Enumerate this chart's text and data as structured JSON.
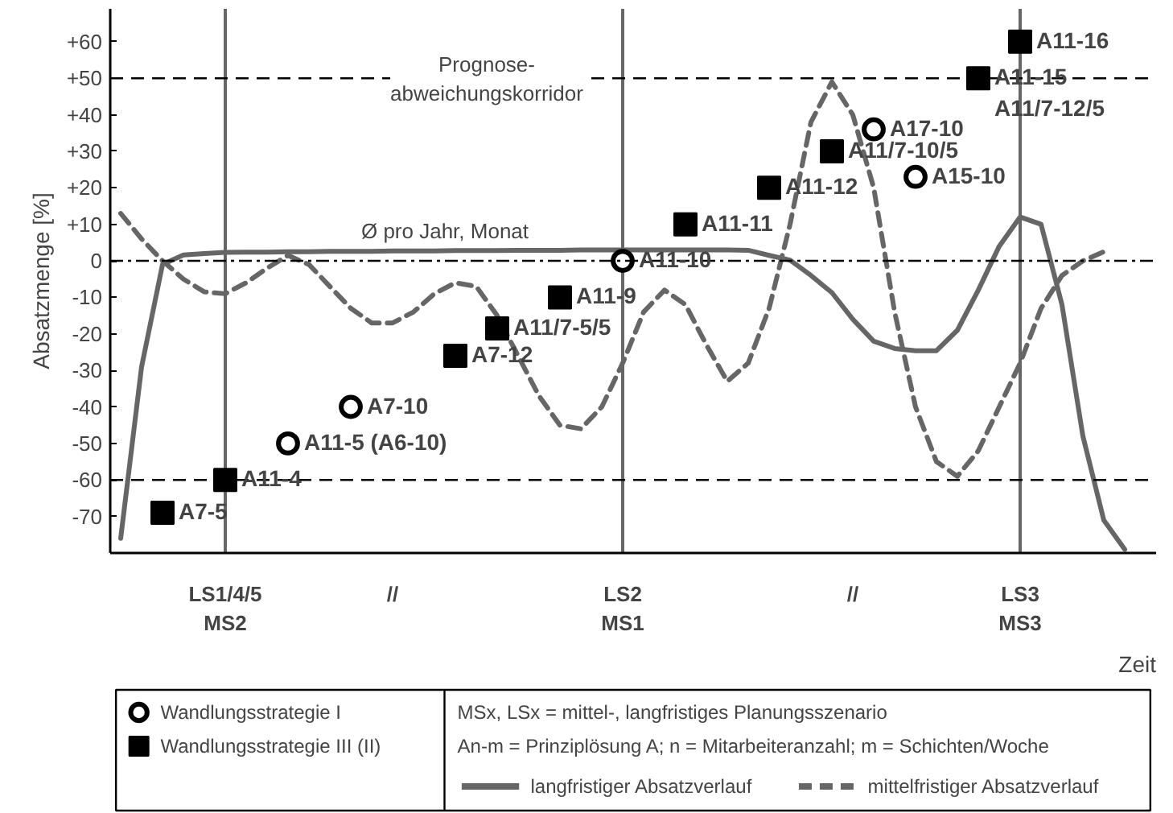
{
  "chart_data": {
    "type": "scatter",
    "ylabel": "Absatzmenge [%]",
    "xlabel": "Zeit",
    "categories": [
      null,
      null,
      null,
      null,
      null,
      "LS1/4/5\nMS2",
      null,
      null,
      null,
      null,
      null,
      null,
      null,
      "//",
      null,
      null,
      null,
      null,
      null,
      null,
      null,
      null,
      null,
      null,
      "LS2\nMS1",
      null,
      null,
      null,
      null,
      null,
      null,
      null,
      null,
      null,
      null,
      "//",
      null,
      null,
      null,
      null,
      null,
      null,
      null,
      "LS3\nMS3",
      null,
      null,
      null,
      null,
      null,
      null
    ],
    "ylim": [
      -80,
      69
    ],
    "yticks": [
      {
        "value": -70,
        "label": "-70"
      },
      {
        "value": -60,
        "label": "-60"
      },
      {
        "value": -50,
        "label": "-50"
      },
      {
        "value": -40,
        "label": "-40"
      },
      {
        "value": -30,
        "label": "-30"
      },
      {
        "value": -20,
        "label": "-20"
      },
      {
        "value": -10,
        "label": "-10"
      },
      {
        "value": 0,
        "label": "0"
      },
      {
        "value": 10,
        "label": "+10"
      },
      {
        "value": 20,
        "label": "+20"
      },
      {
        "value": 30,
        "label": "+30"
      },
      {
        "value": 40,
        "label": "+40"
      },
      {
        "value": 50,
        "label": "+50"
      },
      {
        "value": 60,
        "label": "+60"
      }
    ],
    "legend": "bottom",
    "series": [
      {
        "name": "Wandlungsstrategie I",
        "marker": "circle",
        "color": "#000000",
        "values": [
          null,
          null,
          null,
          null,
          null,
          null,
          null,
          null,
          -50,
          null,
          null,
          -40,
          null,
          null,
          null,
          null,
          null,
          null,
          null,
          null,
          null,
          null,
          null,
          null,
          0,
          null,
          null,
          null,
          null,
          null,
          null,
          null,
          null,
          null,
          null,
          null,
          36,
          null,
          23,
          null,
          null,
          null,
          null,
          null,
          null,
          null,
          null,
          null,
          null,
          null
        ],
        "value_labels": [
          null,
          null,
          null,
          null,
          null,
          null,
          null,
          null,
          "A11-5 (A6-10)",
          null,
          null,
          "A7-10",
          null,
          null,
          null,
          null,
          null,
          null,
          null,
          null,
          null,
          null,
          null,
          null,
          "A11-10",
          null,
          null,
          null,
          null,
          null,
          null,
          null,
          null,
          null,
          null,
          null,
          "A17-10",
          null,
          "A15-10",
          null,
          null,
          null,
          null,
          null,
          null,
          null,
          null,
          null,
          null,
          null
        ]
      },
      {
        "name": "Wandlungsstrategie III (II)",
        "marker": "square",
        "color": "#000000",
        "values": [
          null,
          null,
          -69,
          null,
          null,
          -60,
          null,
          null,
          null,
          null,
          null,
          null,
          null,
          null,
          null,
          null,
          -26,
          null,
          -18.5,
          null,
          null,
          -10,
          null,
          null,
          null,
          null,
          null,
          10,
          null,
          null,
          null,
          20,
          null,
          null,
          30,
          null,
          null,
          null,
          null,
          null,
          null,
          50,
          null,
          60,
          null,
          null,
          null,
          null,
          null,
          null
        ],
        "value_labels": [
          null,
          null,
          "A7-5",
          null,
          null,
          "A11-4",
          null,
          null,
          null,
          null,
          null,
          null,
          null,
          null,
          null,
          null,
          "A7-12",
          null,
          "A11/7-5/5",
          null,
          null,
          "A11-9",
          null,
          null,
          null,
          null,
          null,
          "A11-11",
          null,
          null,
          null,
          "A11-12",
          null,
          null,
          "A11/7-10/5",
          null,
          null,
          null,
          null,
          null,
          null,
          "A11-15\nA11/7-12/5",
          null,
          "A11-16",
          null,
          null,
          null,
          null,
          null,
          null
        ]
      },
      {
        "name": "langfristiger Absatzverlauf",
        "type": "line",
        "line_style": "solid",
        "color": "#666666",
        "values": [
          -76,
          -29,
          -1,
          1.6,
          2,
          2.3,
          2.4,
          2.4,
          2.5,
          2.5,
          2.6,
          2.6,
          2.6,
          2.7,
          2.7,
          2.7,
          2.8,
          2.8,
          2.8,
          2.9,
          2.9,
          2.9,
          3,
          3,
          3,
          3,
          3,
          3,
          3,
          3,
          2.9,
          1.5,
          0.2,
          -4,
          -8.7,
          -16,
          -22,
          -24,
          -24.6,
          -24.6,
          -19,
          -8,
          4,
          12,
          10,
          -12,
          -48,
          -71,
          -79,
          null
        ]
      },
      {
        "name": "mittelfristiger Absatzverlauf",
        "type": "line",
        "line_style": "dashed",
        "color": "#666666",
        "values": [
          13,
          6,
          0,
          -5,
          -8.5,
          -9,
          -6,
          -2,
          1.5,
          -1,
          -7,
          -13,
          -17,
          -17,
          -14,
          -9,
          -6,
          -7,
          -15,
          -26,
          -37,
          -45,
          -46,
          -40,
          -28,
          -14,
          -8,
          -12,
          -23,
          -33,
          -28,
          -13,
          10,
          38,
          49,
          40,
          20,
          -14,
          -40,
          -55,
          -59,
          -52,
          -40,
          -28,
          -13,
          -4,
          0,
          2.5,
          null,
          null
        ]
      }
    ],
    "ref_lines": [
      {
        "axis": "y",
        "value": 50,
        "label": "Prognose-\nabweichungskorridor",
        "line_style": "dashed",
        "color": "#000000"
      },
      {
        "axis": "y",
        "value": -60,
        "line_style": "dashed",
        "color": "#000000"
      },
      {
        "axis": "y",
        "value": 0,
        "line_style": "dashdot",
        "color": "#000000"
      },
      {
        "axis": "x",
        "value": "LS1/4/5\nMS2",
        "color": "#666666"
      },
      {
        "axis": "x",
        "value": "LS2\nMS1",
        "color": "#666666"
      },
      {
        "axis": "x",
        "value": "LS3\nMS3",
        "color": "#666666"
      }
    ],
    "annotations": [
      {
        "text": "Ø pro Jahr, Monat",
        "y": 3
      },
      "MSx, LSx = mittel-, langfristiges Planungsszenario",
      "An-m = Prinziplösung A;   n = Mitarbeiteranzahl;   m = Schichten/Woche"
    ]
  }
}
